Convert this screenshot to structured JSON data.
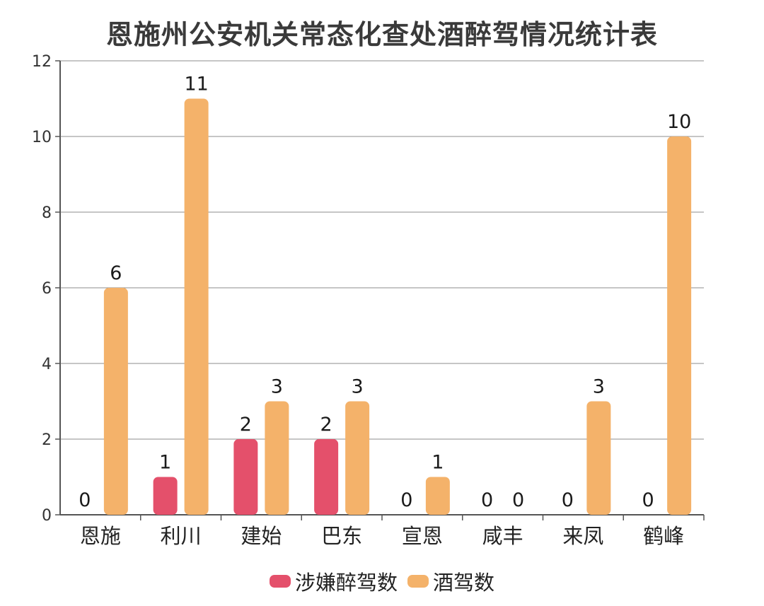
{
  "chart_data": {
    "type": "bar",
    "title": "恩施州公安机关常态化查处酒醉驾情况统计表",
    "categories": [
      "恩施",
      "利川",
      "建始",
      "巴东",
      "宣恩",
      "咸丰",
      "来凤",
      "鹤峰"
    ],
    "series": [
      {
        "name": "涉嫌醉驾数",
        "color": "#e4506b",
        "values": [
          0,
          1,
          2,
          2,
          0,
          0,
          0,
          0
        ]
      },
      {
        "name": "酒驾数",
        "color": "#f4b26a",
        "values": [
          6,
          11,
          3,
          3,
          1,
          0,
          3,
          10
        ]
      }
    ],
    "ylim": [
      0,
      12
    ],
    "yticks": [
      0,
      2,
      4,
      6,
      8,
      10,
      12
    ],
    "grid": true,
    "legend_position": "bottom",
    "data_labels": true
  }
}
